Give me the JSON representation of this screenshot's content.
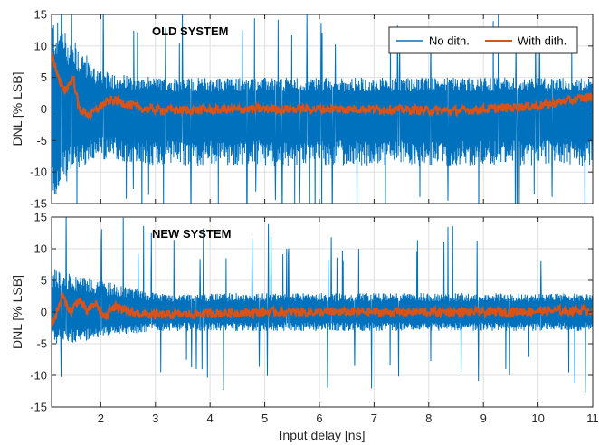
{
  "chart_data": {
    "type": "line",
    "xlabel": "Input delay [ns]",
    "ylabel": "DNL [% LSB]",
    "xlim": [
      1.1,
      11
    ],
    "ylim": [
      -15,
      15
    ],
    "xticks": [
      "2",
      "3",
      "4",
      "5",
      "6",
      "7",
      "8",
      "9",
      "10",
      "11"
    ],
    "yticks": [
      "15",
      "10",
      "5",
      "0",
      "-5",
      "-10",
      "-15"
    ],
    "grid": true,
    "legend": {
      "placement": "top-right",
      "entries": [
        "No dith.",
        "With dith."
      ]
    },
    "colors": {
      "no_dith": "#0072BD",
      "with_dith": "#D95319"
    },
    "panels": [
      {
        "annotation": "OLD SYSTEM",
        "series": [
          {
            "name": "No dith.",
            "envelope": {
              "x": [
                1.1,
                1.5,
                2,
                3,
                5,
                7,
                9,
                11
              ],
              "max": [
                15,
                11,
                6,
                5,
                5,
                5,
                5,
                5
              ],
              "min": [
                -15,
                -10,
                -8,
                -9,
                -9,
                -9,
                -9,
                -9
              ]
            }
          },
          {
            "name": "With dith.",
            "points": {
              "x": [
                1.1,
                1.25,
                1.35,
                1.5,
                1.6,
                1.8,
                2.0,
                2.2,
                2.4,
                2.8,
                3.5,
                5,
                7,
                8.5,
                10,
                11
              ],
              "y": [
                9,
                4,
                3,
                5,
                0,
                -1,
                0.5,
                1.5,
                1.0,
                0,
                -0.2,
                0,
                0,
                -0.3,
                0.5,
                2
              ]
            }
          }
        ]
      },
      {
        "annotation": "NEW SYSTEM",
        "series": [
          {
            "name": "No dith.",
            "envelope": {
              "x": [
                1.1,
                1.5,
                2,
                3,
                5,
                7,
                9,
                11
              ],
              "max": [
                7,
                6,
                5,
                3,
                3,
                3,
                3,
                3
              ],
              "min": [
                -5,
                -5,
                -4,
                -3,
                -3,
                -3,
                -3,
                -3
              ]
            }
          },
          {
            "name": "With dith.",
            "points": {
              "x": [
                1.1,
                1.2,
                1.3,
                1.45,
                1.6,
                1.75,
                1.9,
                2.0,
                2.1,
                2.2,
                2.5,
                3,
                5,
                7,
                9,
                11
              ],
              "y": [
                -2,
                0,
                2.5,
                0,
                2,
                0,
                1.5,
                0,
                -1,
                1,
                0,
                -0.5,
                0,
                0,
                0,
                0.3
              ]
            }
          }
        ]
      }
    ]
  }
}
